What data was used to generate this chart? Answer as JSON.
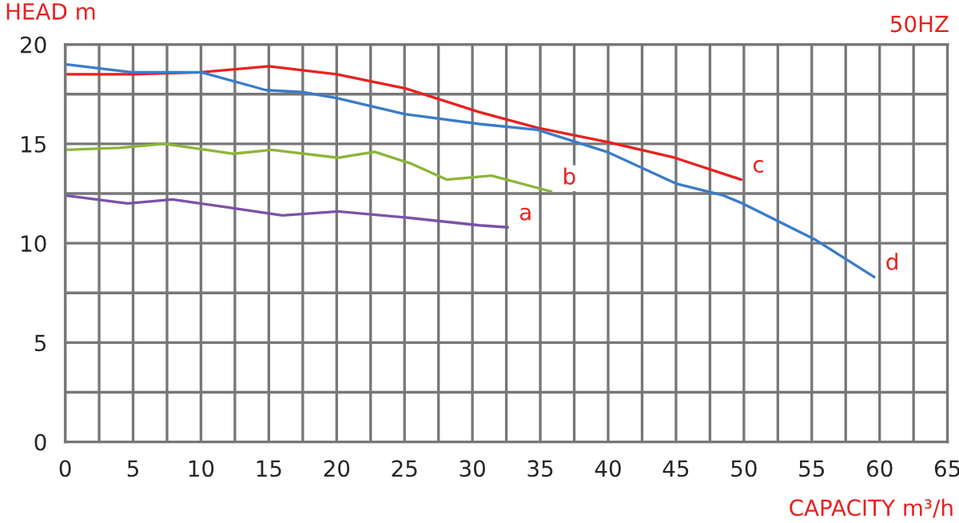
{
  "chart_data": {
    "type": "line",
    "xlabel": "CAPACITY m³/h",
    "ylabel": "HEAD m",
    "annotations": [
      "50HZ"
    ],
    "xlim": [
      0,
      65
    ],
    "ylim": [
      0,
      20
    ],
    "xticks": [
      0,
      {
        "value": 2.5,
        "label": null
      },
      5,
      {
        "value": 7.5,
        "label": null
      },
      10,
      {
        "value": 12.5,
        "label": null
      },
      15,
      {
        "value": 17.5,
        "label": null
      },
      20,
      {
        "value": 22.5,
        "label": null
      },
      25,
      {
        "value": 27.5,
        "label": null
      },
      30,
      {
        "value": 32.5,
        "label": null
      },
      35,
      {
        "value": 37.5,
        "label": null
      },
      40,
      {
        "value": 42.5,
        "label": null
      },
      45,
      {
        "value": 47.5,
        "label": null
      },
      50,
      {
        "value": 52.5,
        "label": null
      },
      55,
      {
        "value": 57.5,
        "label": null
      },
      60,
      {
        "value": 62.5,
        "label": null
      },
      65
    ],
    "yticks": [
      0,
      {
        "value": 2.5,
        "label": null
      },
      5,
      {
        "value": 7.5,
        "label": null
      },
      10,
      {
        "value": 12.5,
        "label": null
      },
      15,
      {
        "value": 17.5,
        "label": null
      },
      20
    ],
    "grid": true,
    "legend": false,
    "marker": "none",
    "line_style": "solid",
    "series": [
      {
        "name": "a",
        "color": "#7b52a8",
        "x": [
          0,
          4.6,
          7.9,
          12,
          16,
          20.1,
          25,
          30.5,
          32.6
        ],
        "values": [
          12.4,
          12.0,
          12.2,
          11.8,
          11.4,
          11.6,
          11.3,
          10.9,
          10.8
        ]
      },
      {
        "name": "b",
        "color": "#8db53a",
        "x": [
          0,
          4,
          7.3,
          12.4,
          15.2,
          20.1,
          22.8,
          25.5,
          28.1,
          31.4,
          35.8
        ],
        "values": [
          14.7,
          14.8,
          15.0,
          14.5,
          14.7,
          14.3,
          14.6,
          14.0,
          13.2,
          13.4,
          12.6
        ]
      },
      {
        "name": "c",
        "color": "#e8211f",
        "x": [
          0,
          5,
          10,
          15,
          20,
          25,
          30.5,
          34.8,
          39.9,
          44.9,
          49.8
        ],
        "values": [
          18.5,
          18.5,
          18.6,
          18.9,
          18.5,
          17.8,
          16.6,
          15.8,
          15.1,
          14.3,
          13.2
        ]
      },
      {
        "name": "d",
        "color": "#3a7cc8",
        "x": [
          0,
          4.9,
          10,
          14.8,
          17.5,
          20,
          25,
          30.5,
          34.8,
          39.9,
          45,
          48.5,
          49.9,
          55.2,
          59.6
        ],
        "values": [
          19.0,
          18.6,
          18.6,
          17.7,
          17.6,
          17.3,
          16.5,
          16.0,
          15.7,
          14.6,
          13.0,
          12.4,
          12.0,
          10.2,
          8.3
        ]
      }
    ]
  }
}
